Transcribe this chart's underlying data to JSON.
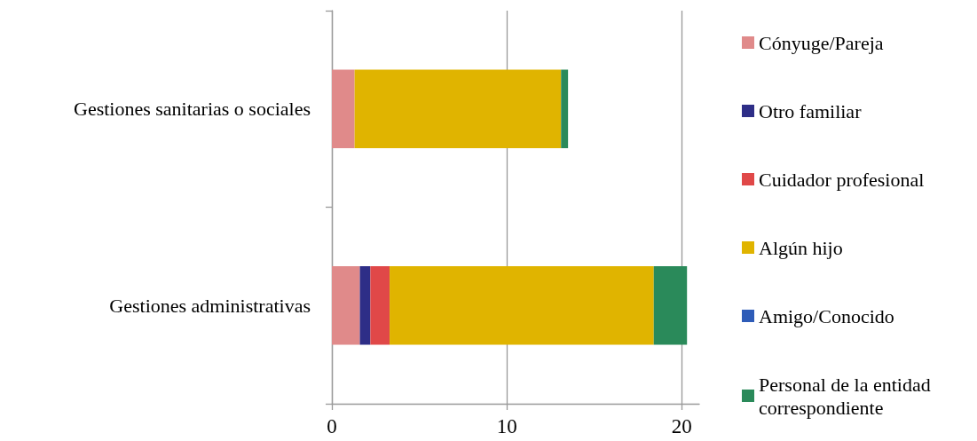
{
  "chart_data": {
    "type": "bar",
    "orientation": "horizontal",
    "stacked": true,
    "categories": [
      "Gestiones sanitarias o sociales",
      "Gestiones administrativas"
    ],
    "series": [
      {
        "name": "Cónyuge/Pareja",
        "color": "#e08a8a",
        "values": [
          1.3,
          1.6
        ]
      },
      {
        "name": "Otro familiar",
        "color": "#2e2e87",
        "values": [
          0,
          0.6
        ]
      },
      {
        "name": "Cuidador profesional",
        "color": "#e04848",
        "values": [
          0,
          1.1
        ]
      },
      {
        "name": "Algún hijo",
        "color": "#e0b400",
        "values": [
          11.8,
          15.1
        ]
      },
      {
        "name": "Amigo/Conocido",
        "color": "#2e5cb8",
        "values": [
          0,
          0
        ]
      },
      {
        "name": "Personal de la entidad correspondiente",
        "color": "#2a8a5a",
        "values": [
          0.4,
          1.9
        ]
      }
    ],
    "xlim": [
      0,
      21
    ],
    "xticks": [
      0,
      10,
      20
    ],
    "grid": "x",
    "legend": "right"
  }
}
